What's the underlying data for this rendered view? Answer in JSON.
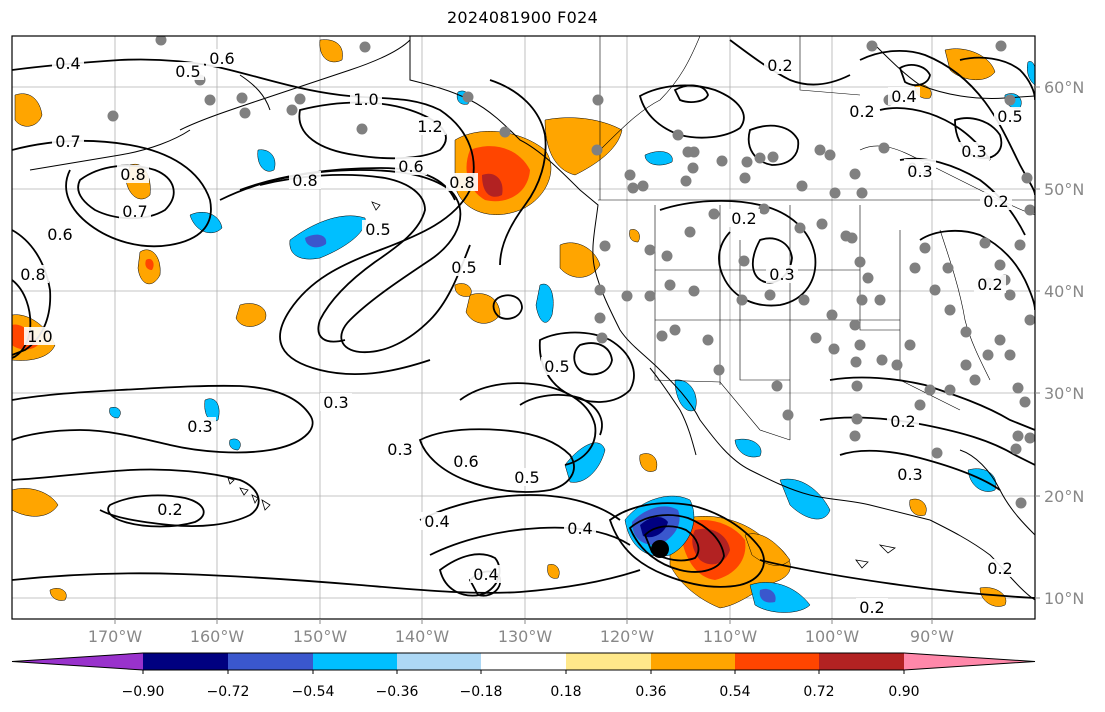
{
  "title": "2024081900 F024",
  "map": {
    "lon_ticks": [
      "170°W",
      "160°W",
      "150°W",
      "140°W",
      "130°W",
      "120°W",
      "110°W",
      "100°W",
      "90°W"
    ],
    "lat_ticks": [
      "60°N",
      "50°N",
      "40°N",
      "30°N",
      "20°N",
      "10°N"
    ],
    "contour_labels": [
      "0.4",
      "0.5",
      "0.6",
      "0.7",
      "1.0",
      "0.8",
      "0.6",
      "0.8",
      "0.7",
      "1.0",
      "1.2",
      "0.6",
      "0.8",
      "0.8",
      "0.5",
      "0.5",
      "0.3",
      "0.3",
      "0.3",
      "0.6",
      "0.5",
      "0.5",
      "0.2",
      "0.4",
      "0.4",
      "0.4",
      "0.2",
      "0.2",
      "0.3",
      "0.2",
      "0.3",
      "0.2",
      "0.3",
      "0.2",
      "0.5",
      "0.4",
      "0.3",
      "0.2",
      "0.2",
      "0.2",
      "0.2"
    ],
    "storm_marker": "tropical-cyclone-center"
  },
  "colorbar": {
    "tick_labels": [
      "−0.90",
      "−0.72",
      "−0.54",
      "−0.36",
      "−0.18",
      "0.18",
      "0.36",
      "0.54",
      "0.72",
      "0.90"
    ],
    "colors": [
      "#9932cc",
      "#000080",
      "#3a57cd",
      "#00bfff",
      "#add8f5",
      "#ffffff",
      "#ffe88a",
      "#ffa500",
      "#ff4500",
      "#b22222",
      "#ff88aa"
    ]
  }
}
